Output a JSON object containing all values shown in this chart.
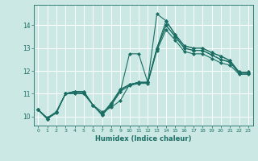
{
  "title": "",
  "xlabel": "Humidex (Indice chaleur)",
  "background_color": "#cce8e4",
  "grid_color": "#ffffff",
  "line_color": "#1a6e64",
  "marker": "D",
  "markersize": 2.0,
  "linewidth": 0.8,
  "xlim": [
    -0.5,
    23.5
  ],
  "ylim": [
    9.6,
    14.9
  ],
  "xticks": [
    0,
    1,
    2,
    3,
    4,
    5,
    6,
    7,
    8,
    9,
    10,
    11,
    12,
    13,
    14,
    15,
    16,
    17,
    18,
    19,
    20,
    21,
    22,
    23
  ],
  "yticks": [
    10,
    11,
    12,
    13,
    14
  ],
  "series": [
    [
      10.3,
      9.9,
      10.2,
      11.0,
      11.1,
      11.1,
      10.5,
      10.2,
      10.4,
      10.7,
      11.4,
      11.5,
      11.5,
      13.0,
      14.2,
      13.6,
      13.1,
      13.0,
      13.0,
      12.8,
      12.65,
      12.45,
      11.95,
      11.95
    ],
    [
      10.3,
      9.9,
      10.2,
      11.0,
      11.1,
      11.1,
      10.5,
      10.1,
      10.5,
      11.1,
      12.75,
      12.75,
      11.5,
      14.5,
      14.2,
      13.6,
      13.1,
      13.0,
      13.0,
      12.8,
      12.65,
      12.45,
      11.95,
      11.95
    ],
    [
      10.3,
      9.9,
      10.2,
      11.0,
      11.1,
      11.0,
      10.5,
      10.1,
      10.6,
      11.2,
      11.4,
      11.5,
      11.5,
      13.0,
      14.0,
      13.5,
      13.0,
      12.9,
      12.9,
      12.7,
      12.5,
      12.4,
      11.9,
      11.9
    ],
    [
      10.3,
      9.9,
      10.15,
      11.0,
      11.0,
      11.0,
      10.5,
      10.05,
      10.5,
      11.1,
      11.35,
      11.45,
      11.45,
      12.9,
      13.8,
      13.35,
      12.85,
      12.75,
      12.75,
      12.55,
      12.35,
      12.25,
      11.85,
      11.85
    ],
    [
      10.3,
      9.95,
      10.2,
      11.0,
      11.05,
      11.05,
      10.5,
      10.1,
      10.55,
      11.15,
      11.4,
      11.48,
      11.5,
      12.95,
      14.0,
      13.52,
      13.0,
      12.9,
      12.9,
      12.7,
      12.5,
      12.38,
      11.9,
      11.9
    ]
  ]
}
